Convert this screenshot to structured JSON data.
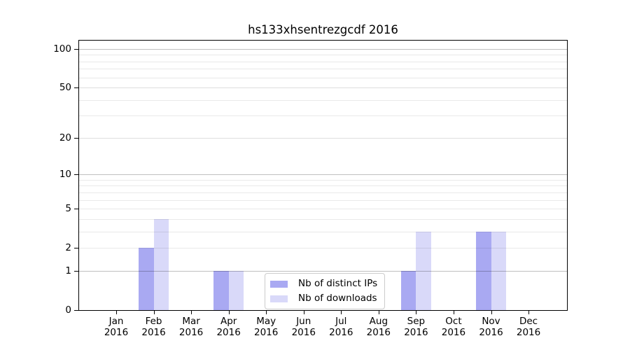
{
  "chart_data": {
    "type": "bar",
    "title": "hs133xhsentrezgcdf 2016",
    "year_label": "2016",
    "categories": [
      "Jan 2016",
      "Feb 2016",
      "Mar 2016",
      "Apr 2016",
      "May 2016",
      "Jun 2016",
      "Jul 2016",
      "Aug 2016",
      "Sep 2016",
      "Oct 2016",
      "Nov 2016",
      "Dec 2016"
    ],
    "months": [
      "Jan",
      "Feb",
      "Mar",
      "Apr",
      "May",
      "Jun",
      "Jul",
      "Aug",
      "Sep",
      "Oct",
      "Nov",
      "Dec"
    ],
    "series": [
      {
        "name": "Nb of distinct IPs",
        "color": "#a9a9f2",
        "values": [
          0,
          2,
          0,
          1,
          0,
          0,
          0,
          0,
          1,
          0,
          3,
          0
        ]
      },
      {
        "name": "Nb of downloads",
        "color": "#d9d9f9",
        "values": [
          0,
          4,
          0,
          1,
          0,
          0,
          0,
          0,
          3,
          0,
          3,
          0
        ]
      }
    ],
    "yticks": [
      0,
      1,
      2,
      5,
      10,
      20,
      50,
      100
    ],
    "ylabel": "",
    "xlabel": "",
    "scale": "log1p",
    "ylim": [
      0,
      116
    ],
    "grid": "on",
    "legend_position": "inside lower center",
    "colors": {
      "axis": "#000000",
      "grid_major": "rgba(0,0,0,0.25)",
      "grid_mid": "rgba(0,0,0,0.13)",
      "grid_minor": "rgba(0,0,0,0.085)",
      "background": "#ffffff"
    }
  }
}
